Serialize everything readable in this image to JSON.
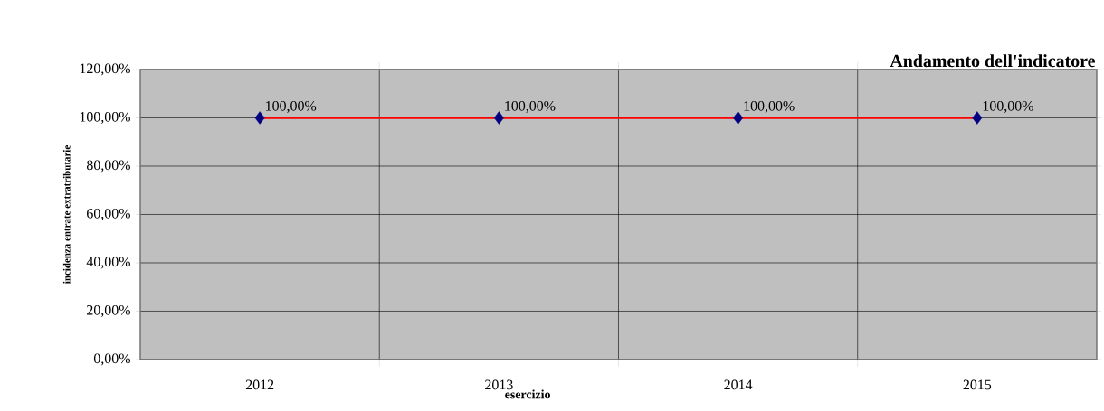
{
  "chart_data": {
    "type": "line",
    "title": "Andamento dell'indicatore",
    "xlabel": "esercizio",
    "ylabel": "incidenza entrate extratributarie",
    "categories": [
      "2012",
      "2013",
      "2014",
      "2015"
    ],
    "series": [
      {
        "color": "#ff0000",
        "colors": [
          "#000080",
          "#000080",
          "#000080",
          "#000080"
        ],
        "values": [
          100,
          100,
          100,
          100
        ],
        "value_labels": [
          "100,00%",
          "100,00%",
          "100,00%",
          "100,00%"
        ]
      }
    ],
    "ylim": [
      0,
      120
    ],
    "yticks": [
      {
        "value": 0,
        "label": "0,00%"
      },
      {
        "value": 20,
        "label": "20,00%"
      },
      {
        "value": 40,
        "label": "40,00%"
      },
      {
        "value": 60,
        "label": "60,00%"
      },
      {
        "value": 80,
        "label": "80,00%"
      },
      {
        "value": 100,
        "label": "100,00%"
      },
      {
        "value": 120,
        "label": "120,00%"
      }
    ],
    "grid": true,
    "marker": "diamond",
    "line_style": "solid"
  }
}
